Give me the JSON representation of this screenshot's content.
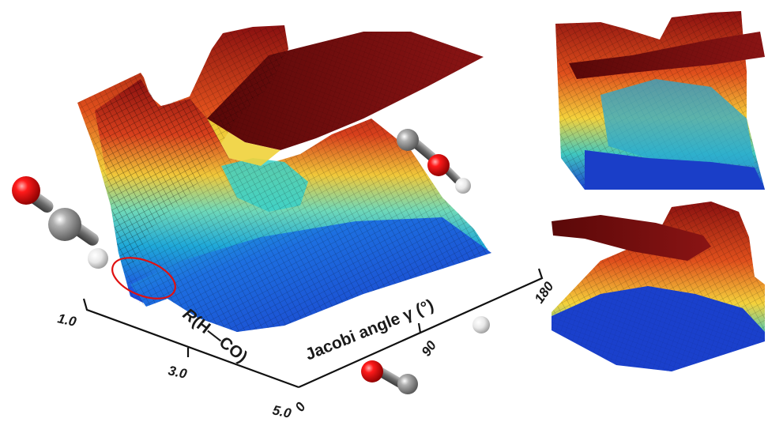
{
  "axes": {
    "r_axis": {
      "label_italic": "R",
      "label_rest": "(H—CO)",
      "ticks": [
        "1.0",
        "3.0",
        "5.0"
      ]
    },
    "gamma_axis": {
      "label": "Jacobi angle γ (°)",
      "ticks": [
        "0",
        "90",
        "180"
      ]
    }
  },
  "colors": {
    "carbon": "#8c8c8c",
    "oxygen": "#e01010",
    "hydrogen": "#e6e6e6",
    "highlight": "#e01010",
    "surface_high": "#7a0d0d",
    "surface_mid": "#f2e23a",
    "surface_low": "#1a3fd8"
  },
  "molecules": {
    "left": "H-C-O (linear, formyl)",
    "right": "H-O-C (isoformyl)",
    "bottom": "O-C with separated H"
  }
}
